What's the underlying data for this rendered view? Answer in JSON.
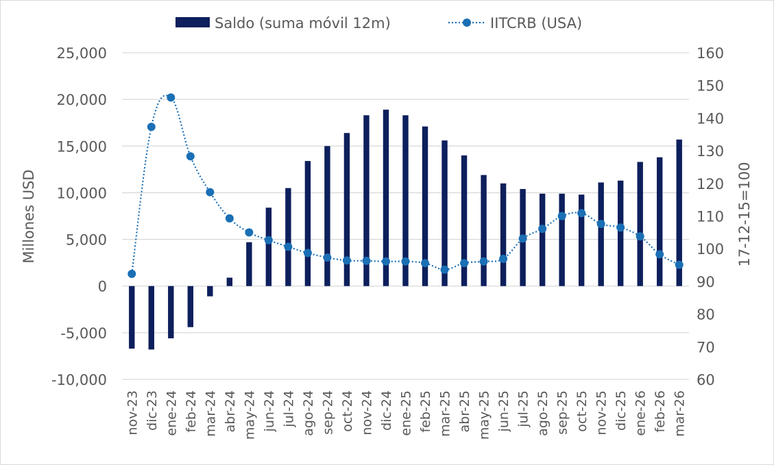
{
  "chart_data": {
    "type": "bar+line",
    "categories": [
      "nov-23",
      "dic-23",
      "ene-24",
      "feb-24",
      "mar-24",
      "abr-24",
      "may-24",
      "jun-24",
      "jul-24",
      "ago-24",
      "sep-24",
      "oct-24",
      "nov-24",
      "dic-24",
      "ene-25",
      "feb-25",
      "mar-25",
      "abr-25",
      "may-25",
      "jun-25",
      "jul-25",
      "ago-25",
      "sep-25",
      "oct-25",
      "nov-25",
      "dic-25",
      "ene-26",
      "feb-26",
      "mar-26"
    ],
    "series": [
      {
        "name": "Saldo (suma móvil 12m)",
        "type": "bar",
        "axis": "left",
        "color": "#0d1f5c",
        "values": [
          -6700,
          -6800,
          -5600,
          -4400,
          -1100,
          900,
          4700,
          8400,
          10500,
          13400,
          15000,
          16400,
          18300,
          18900,
          18300,
          17100,
          15600,
          14000,
          11900,
          11000,
          10400,
          9900,
          9900,
          9800,
          11100,
          11300,
          13300,
          13800,
          15700
        ]
      },
      {
        "name": "IITCRB (USA)",
        "type": "line",
        "style": "dotted-with-markers",
        "axis": "right",
        "color": "#1a6fb5",
        "values": [
          92.3,
          137.3,
          146.3,
          128.3,
          117.3,
          109.3,
          105.0,
          102.6,
          100.6,
          98.7,
          97.3,
          96.4,
          96.3,
          96.1,
          96.1,
          95.6,
          93.6,
          95.6,
          96.1,
          96.9,
          103.1,
          106.1,
          110.0,
          110.9,
          107.6,
          106.5,
          103.8,
          98.3,
          95.1
        ]
      }
    ],
    "left_axis": {
      "label": "Millones USD",
      "range": [
        -10000,
        25000
      ],
      "ticks": [
        -10000,
        -5000,
        0,
        5000,
        10000,
        15000,
        20000,
        25000
      ],
      "tick_labels": [
        "-10,000",
        "-5,000",
        "0",
        "5,000",
        "10,000",
        "15,000",
        "20,000",
        "25,000"
      ]
    },
    "right_axis": {
      "label": "17-12-15=100",
      "range": [
        60,
        160
      ],
      "ticks": [
        60,
        70,
        80,
        90,
        100,
        110,
        120,
        130,
        140,
        150,
        160
      ],
      "tick_labels": [
        "60",
        "70",
        "80",
        "90",
        "100",
        "110",
        "120",
        "130",
        "140",
        "150",
        "160"
      ]
    },
    "grid": "horizontal",
    "legend": "top-center"
  }
}
